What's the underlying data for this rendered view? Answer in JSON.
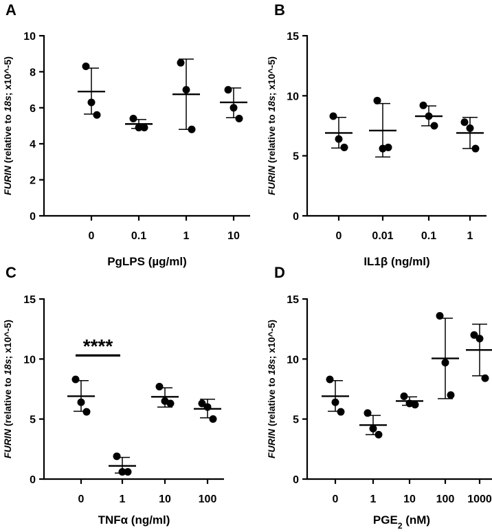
{
  "chart_data": [
    {
      "panel": "A",
      "type": "scatter",
      "ylabel": {
        "gene": "FURIN",
        "reference": "18s",
        "suffix": "x10^-5"
      },
      "ylabel_parts": [
        "FURIN",
        " (relative to ",
        "18s",
        "; x10^-5)"
      ],
      "xlabel": "PgLPS (µg/ml)",
      "xlabel_parts": [
        "PgLPS (µg/ml)"
      ],
      "ylim": [
        0,
        10
      ],
      "yticks": [
        0,
        2,
        4,
        6,
        8,
        10
      ],
      "categories": [
        "0",
        "0.1",
        "1",
        "10"
      ],
      "groups": [
        {
          "points": [
            8.3,
            6.3,
            5.6
          ],
          "mean": 6.9,
          "sd_low": 5.65,
          "sd_high": 8.2
        },
        {
          "points": [
            5.4,
            4.9,
            4.9
          ],
          "mean": 5.1,
          "sd_low": 4.85,
          "sd_high": 5.35
        },
        {
          "points": [
            8.5,
            7.0,
            4.8
          ],
          "mean": 6.75,
          "sd_low": 4.8,
          "sd_high": 8.7
        },
        {
          "points": [
            7.0,
            6.0,
            5.4
          ],
          "mean": 6.3,
          "sd_low": 5.45,
          "sd_high": 7.1
        }
      ]
    },
    {
      "panel": "B",
      "type": "scatter",
      "ylabel": {
        "gene": "FURIN",
        "reference": "18s",
        "suffix": "x10^-5"
      },
      "ylabel_parts": [
        "FURIN",
        " (relative to ",
        "18s",
        "; x10^-5)"
      ],
      "xlabel": "IL1β (ng/ml)",
      "xlabel_parts": [
        "IL1β (ng/ml)"
      ],
      "ylim": [
        0,
        15
      ],
      "yticks": [
        0,
        5,
        10,
        15
      ],
      "categories": [
        "0",
        "0.01",
        "0.1",
        "1"
      ],
      "groups": [
        {
          "points": [
            8.3,
            6.4,
            5.7
          ],
          "mean": 6.9,
          "sd_low": 5.65,
          "sd_high": 8.2
        },
        {
          "points": [
            9.6,
            5.6,
            5.7
          ],
          "mean": 7.1,
          "sd_low": 4.9,
          "sd_high": 9.35
        },
        {
          "points": [
            9.2,
            8.3,
            7.5
          ],
          "mean": 8.3,
          "sd_low": 7.5,
          "sd_high": 9.15
        },
        {
          "points": [
            7.8,
            7.3,
            5.6
          ],
          "mean": 6.9,
          "sd_low": 5.6,
          "sd_high": 8.2
        }
      ]
    },
    {
      "panel": "C",
      "type": "scatter",
      "ylabel": {
        "gene": "FURIN",
        "reference": "18s",
        "suffix": "x10^-5"
      },
      "ylabel_parts": [
        "FURIN",
        " (relative to ",
        "18s",
        "; x10^-5)"
      ],
      "xlabel": "TNFα (ng/ml)",
      "xlabel_parts": [
        "TNFα (ng/ml)"
      ],
      "ylim": [
        0,
        15
      ],
      "yticks": [
        0,
        5,
        10,
        15
      ],
      "categories": [
        "0",
        "1",
        "10",
        "100"
      ],
      "groups": [
        {
          "points": [
            8.3,
            6.4,
            5.6
          ],
          "mean": 6.9,
          "sd_low": 5.65,
          "sd_high": 8.2
        },
        {
          "points": [
            1.9,
            0.6,
            0.6
          ],
          "mean": 1.1,
          "sd_low": 0.5,
          "sd_high": 1.8
        },
        {
          "points": [
            7.7,
            6.5,
            6.3
          ],
          "mean": 6.85,
          "sd_low": 6.0,
          "sd_high": 7.6
        },
        {
          "points": [
            6.3,
            6.0,
            5.0
          ],
          "mean": 5.85,
          "sd_low": 5.1,
          "sd_high": 6.65
        }
      ],
      "annotation": {
        "text": "****",
        "from": 0,
        "to": 1,
        "y": 10.3
      }
    },
    {
      "panel": "D",
      "type": "scatter",
      "ylabel": {
        "gene": "FURIN",
        "reference": "18s",
        "suffix": "x10^-5"
      },
      "ylabel_parts": [
        "FURIN",
        " (relative to ",
        "18s",
        "; x10^-5)"
      ],
      "xlabel": "PGE2 (nM)",
      "xlabel_parts": [
        "PGE",
        "2",
        " (nM)"
      ],
      "ylim": [
        0,
        15
      ],
      "yticks": [
        0,
        5,
        10,
        15
      ],
      "categories": [
        "0",
        "1",
        "10",
        "100",
        "1000"
      ],
      "groups": [
        {
          "points": [
            8.3,
            6.4,
            5.6
          ],
          "mean": 6.9,
          "sd_low": 5.65,
          "sd_high": 8.2
        },
        {
          "points": [
            5.5,
            4.2,
            3.7
          ],
          "mean": 4.5,
          "sd_low": 3.7,
          "sd_high": 5.3
        },
        {
          "points": [
            6.9,
            6.3,
            6.2
          ],
          "mean": 6.5,
          "sd_low": 6.15,
          "sd_high": 6.85
        },
        {
          "points": [
            13.6,
            9.7,
            7.0
          ],
          "mean": 10.05,
          "sd_low": 6.7,
          "sd_high": 13.4
        },
        {
          "points": [
            12.0,
            11.7,
            8.4
          ],
          "mean": 10.75,
          "sd_low": 8.6,
          "sd_high": 12.9
        }
      ]
    }
  ]
}
